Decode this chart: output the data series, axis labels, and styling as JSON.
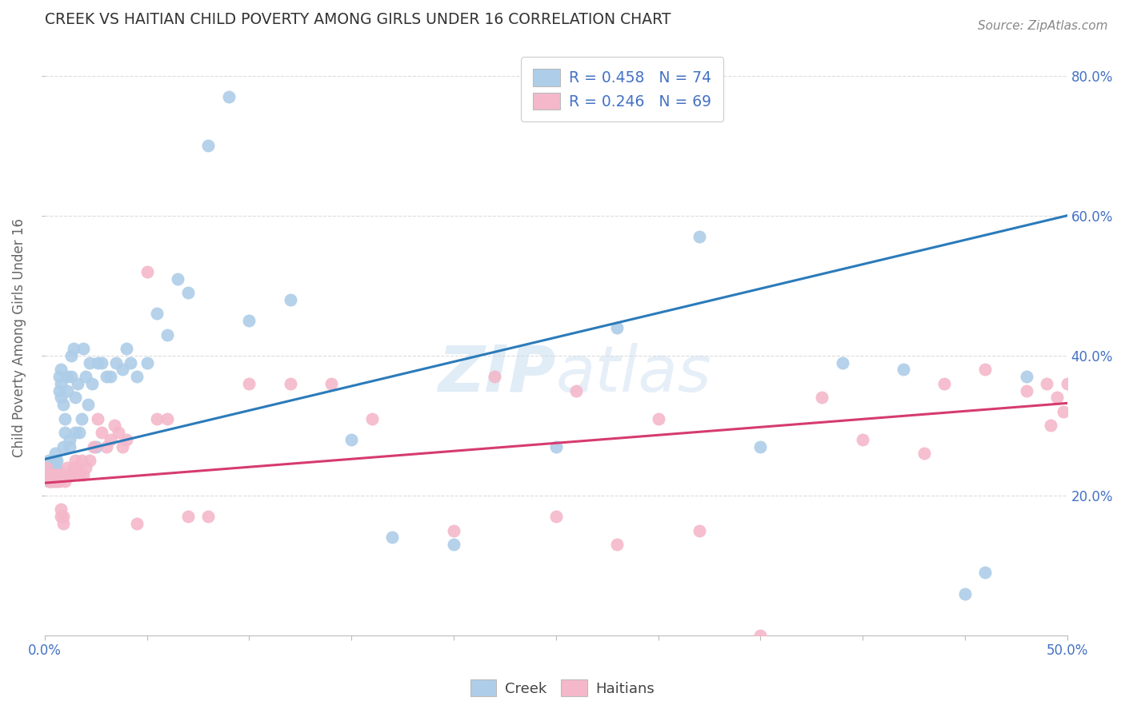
{
  "title": "CREEK VS HAITIAN CHILD POVERTY AMONG GIRLS UNDER 16 CORRELATION CHART",
  "source": "Source: ZipAtlas.com",
  "ylabel": "Child Poverty Among Girls Under 16",
  "watermark": "ZIPatlas",
  "xlim": [
    0.0,
    0.5
  ],
  "ylim": [
    0.0,
    0.85
  ],
  "xticks": [
    0.0,
    0.1,
    0.2,
    0.3,
    0.4,
    0.5
  ],
  "xticklabels": [
    "0.0%",
    "",
    "",
    "",
    "",
    "50.0%"
  ],
  "yticks": [
    0.2,
    0.4,
    0.6,
    0.8
  ],
  "yticklabels": [
    "20.0%",
    "40.0%",
    "60.0%",
    "80.0%"
  ],
  "creek_color": "#aecde8",
  "haitian_color": "#f4b8ca",
  "creek_line_color": "#2b7bba",
  "haitian_line_color": "#d63b6e",
  "creek_line_y0": 0.252,
  "creek_line_y1": 0.6,
  "haitian_line_y0": 0.218,
  "haitian_line_y1": 0.332,
  "creek_x": [
    0.001,
    0.001,
    0.002,
    0.002,
    0.002,
    0.003,
    0.003,
    0.003,
    0.004,
    0.004,
    0.004,
    0.005,
    0.005,
    0.005,
    0.006,
    0.006,
    0.006,
    0.007,
    0.007,
    0.008,
    0.008,
    0.008,
    0.009,
    0.009,
    0.01,
    0.01,
    0.011,
    0.011,
    0.012,
    0.012,
    0.013,
    0.013,
    0.014,
    0.015,
    0.015,
    0.016,
    0.017,
    0.018,
    0.019,
    0.02,
    0.021,
    0.022,
    0.023,
    0.025,
    0.026,
    0.028,
    0.03,
    0.032,
    0.035,
    0.038,
    0.04,
    0.042,
    0.045,
    0.05,
    0.055,
    0.06,
    0.065,
    0.07,
    0.08,
    0.09,
    0.1,
    0.12,
    0.15,
    0.17,
    0.2,
    0.25,
    0.28,
    0.32,
    0.35,
    0.39,
    0.42,
    0.45,
    0.46,
    0.48
  ],
  "creek_y": [
    0.24,
    0.23,
    0.25,
    0.24,
    0.22,
    0.24,
    0.23,
    0.22,
    0.25,
    0.24,
    0.23,
    0.26,
    0.25,
    0.24,
    0.25,
    0.24,
    0.23,
    0.37,
    0.35,
    0.38,
    0.36,
    0.34,
    0.33,
    0.27,
    0.31,
    0.29,
    0.37,
    0.35,
    0.28,
    0.27,
    0.4,
    0.37,
    0.41,
    0.34,
    0.29,
    0.36,
    0.29,
    0.31,
    0.41,
    0.37,
    0.33,
    0.39,
    0.36,
    0.27,
    0.39,
    0.39,
    0.37,
    0.37,
    0.39,
    0.38,
    0.41,
    0.39,
    0.37,
    0.39,
    0.46,
    0.43,
    0.51,
    0.49,
    0.7,
    0.77,
    0.45,
    0.48,
    0.28,
    0.14,
    0.13,
    0.27,
    0.44,
    0.57,
    0.27,
    0.39,
    0.38,
    0.06,
    0.09,
    0.37
  ],
  "haitian_x": [
    0.001,
    0.001,
    0.002,
    0.002,
    0.003,
    0.003,
    0.004,
    0.004,
    0.005,
    0.005,
    0.006,
    0.006,
    0.007,
    0.007,
    0.008,
    0.008,
    0.009,
    0.009,
    0.01,
    0.01,
    0.011,
    0.012,
    0.013,
    0.014,
    0.015,
    0.016,
    0.017,
    0.018,
    0.019,
    0.02,
    0.022,
    0.024,
    0.026,
    0.028,
    0.03,
    0.032,
    0.034,
    0.036,
    0.038,
    0.04,
    0.045,
    0.05,
    0.055,
    0.06,
    0.07,
    0.08,
    0.1,
    0.12,
    0.14,
    0.16,
    0.2,
    0.22,
    0.25,
    0.26,
    0.28,
    0.3,
    0.32,
    0.35,
    0.38,
    0.4,
    0.43,
    0.44,
    0.46,
    0.48,
    0.49,
    0.492,
    0.495,
    0.498,
    0.5
  ],
  "haitian_y": [
    0.24,
    0.23,
    0.23,
    0.22,
    0.23,
    0.22,
    0.23,
    0.22,
    0.23,
    0.22,
    0.23,
    0.22,
    0.23,
    0.22,
    0.18,
    0.17,
    0.17,
    0.16,
    0.23,
    0.22,
    0.24,
    0.23,
    0.23,
    0.24,
    0.25,
    0.24,
    0.23,
    0.25,
    0.23,
    0.24,
    0.25,
    0.27,
    0.31,
    0.29,
    0.27,
    0.28,
    0.3,
    0.29,
    0.27,
    0.28,
    0.16,
    0.52,
    0.31,
    0.31,
    0.17,
    0.17,
    0.36,
    0.36,
    0.36,
    0.31,
    0.15,
    0.37,
    0.17,
    0.35,
    0.13,
    0.31,
    0.15,
    0.0,
    0.34,
    0.28,
    0.26,
    0.36,
    0.38,
    0.35,
    0.36,
    0.3,
    0.34,
    0.32,
    0.36
  ],
  "background_color": "#ffffff",
  "grid_color": "#dddddd",
  "title_color": "#333333",
  "axis_label_color": "#666666",
  "tick_color": "#4472c4"
}
